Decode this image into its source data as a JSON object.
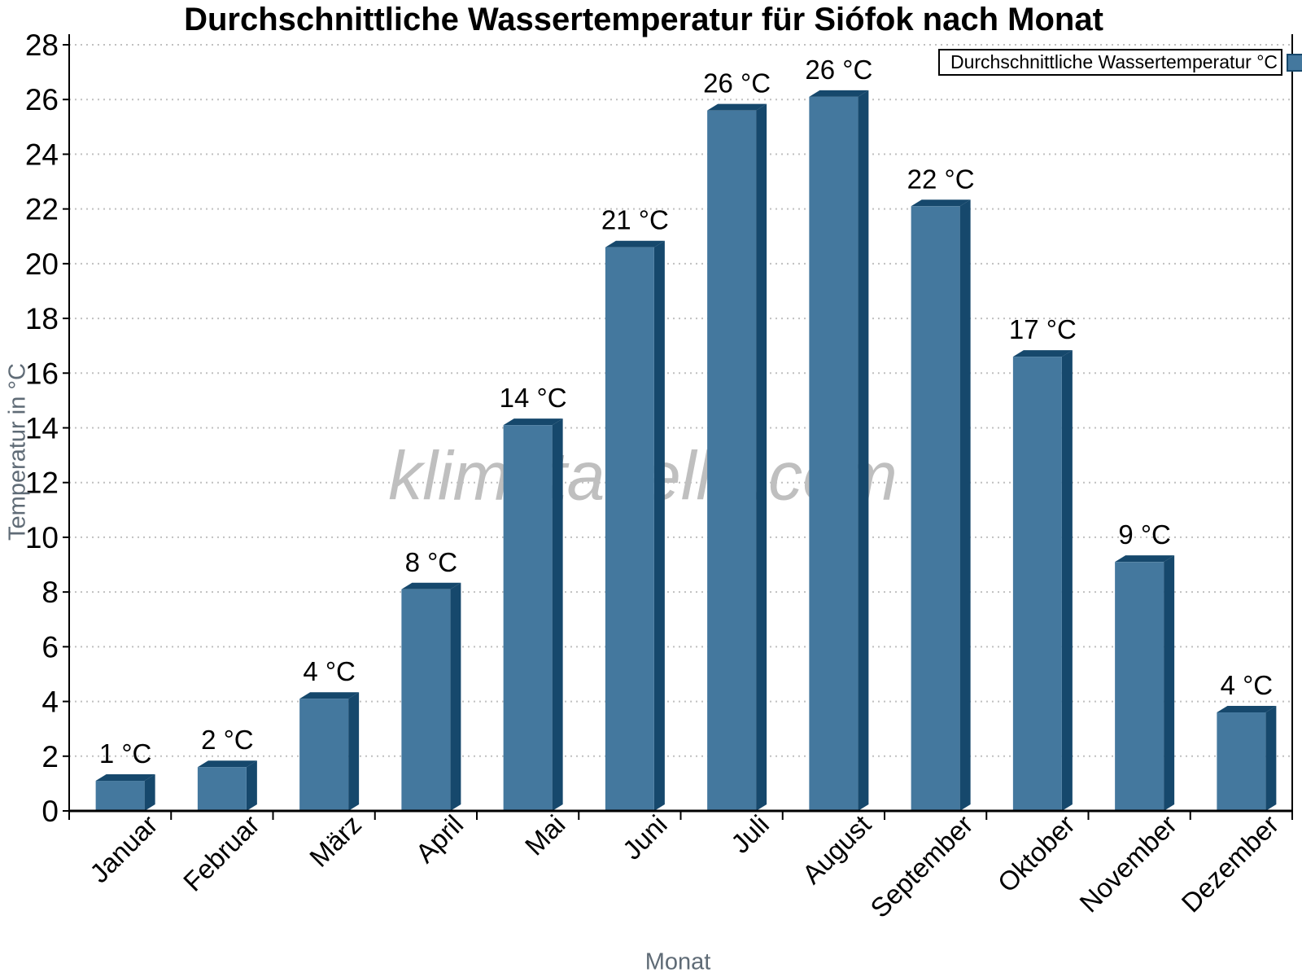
{
  "chart_data": {
    "type": "bar",
    "title": "Durchschnittliche Wassertemperatur für Siófok nach Monat",
    "xlabel": "Monat",
    "ylabel": "Temperatur in °C",
    "legend_label": "Durchschnittliche Wassertemperatur °C",
    "legend_position": "top-right",
    "watermark": "klimatabelle.com",
    "categories": [
      "Januar",
      "Februar",
      "März",
      "April",
      "Mai",
      "Juni",
      "Juli",
      "August",
      "September",
      "Oktober",
      "November",
      "Dezember"
    ],
    "values": [
      1.1,
      1.6,
      4.1,
      8.1,
      14.1,
      20.6,
      25.6,
      26.1,
      22.1,
      16.6,
      9.1,
      3.6
    ],
    "bar_labels": [
      "1 °C",
      "2 °C",
      "4 °C",
      "8 °C",
      "14 °C",
      "21 °C",
      "26 °C",
      "26 °C",
      "22 °C",
      "17 °C",
      "9 °C",
      "4 °C"
    ],
    "ylim": [
      0,
      28
    ],
    "yticks": [
      0,
      2,
      4,
      6,
      8,
      10,
      12,
      14,
      16,
      18,
      20,
      22,
      24,
      26,
      28
    ],
    "grid": "horizontal-dotted",
    "colors": {
      "bar_face": "#44789e",
      "bar_dark": "#16486c",
      "axis": "#000000",
      "grid": "#c0c0c0",
      "tick_label": "#000000",
      "axis_title": "#5f6b76",
      "watermark": "#bfbfbf",
      "background": "#ffffff"
    }
  }
}
